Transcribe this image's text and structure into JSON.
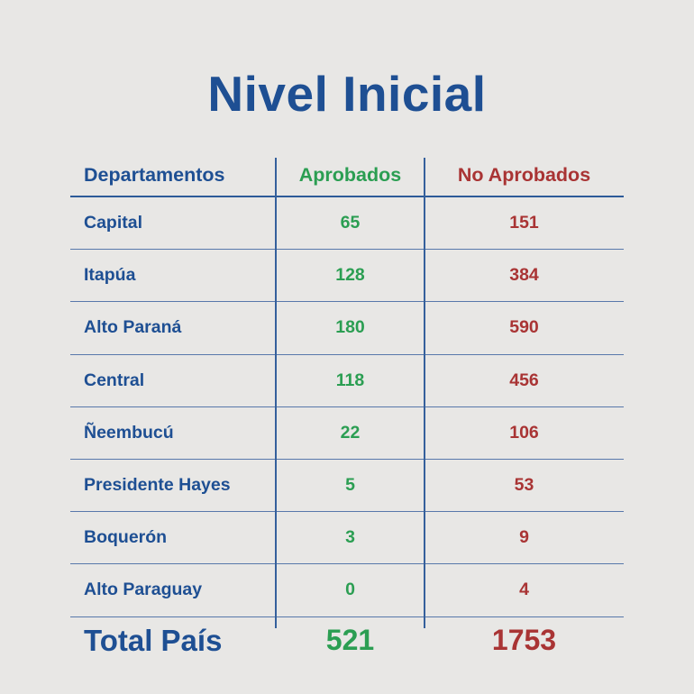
{
  "title": "Nivel Inicial",
  "colors": {
    "background": "#e8e7e5",
    "blue_text": "#1e4f93",
    "green_text": "#2b9e52",
    "red_text": "#a93434",
    "line_blue": "#2d5b99"
  },
  "table": {
    "headers": {
      "departamentos": "Departamentos",
      "aprobados": "Aprobados",
      "no_aprobados": "No Aprobados"
    },
    "rows": [
      {
        "departamento": "Capital",
        "aprobados": "65",
        "no_aprobados": "151"
      },
      {
        "departamento": "Itapúa",
        "aprobados": "128",
        "no_aprobados": "384"
      },
      {
        "departamento": "Alto Paraná",
        "aprobados": "180",
        "no_aprobados": "590"
      },
      {
        "departamento": "Central",
        "aprobados": "118",
        "no_aprobados": "456"
      },
      {
        "departamento": "Ñeembucú",
        "aprobados": "22",
        "no_aprobados": "106"
      },
      {
        "departamento": "Presidente Hayes",
        "aprobados": "5",
        "no_aprobados": "53"
      },
      {
        "departamento": "Boquerón",
        "aprobados": "3",
        "no_aprobados": "9"
      },
      {
        "departamento": "Alto Paraguay",
        "aprobados": "0",
        "no_aprobados": "4"
      }
    ],
    "total": {
      "departamento": "Total País",
      "aprobados": "521",
      "no_aprobados": "1753"
    }
  },
  "chart_data": {
    "type": "table",
    "title": "Nivel Inicial",
    "columns": [
      "Departamentos",
      "Aprobados",
      "No Aprobados"
    ],
    "categories": [
      "Capital",
      "Itapúa",
      "Alto Paraná",
      "Central",
      "Ñeembucú",
      "Presidente Hayes",
      "Boquerón",
      "Alto Paraguay"
    ],
    "series": [
      {
        "name": "Aprobados",
        "values": [
          65,
          128,
          180,
          118,
          22,
          5,
          3,
          0
        ]
      },
      {
        "name": "No Aprobados",
        "values": [
          151,
          384,
          590,
          456,
          106,
          53,
          9,
          4
        ]
      }
    ],
    "totals": {
      "label": "Total País",
      "Aprobados": 521,
      "No Aprobados": 1753
    }
  }
}
